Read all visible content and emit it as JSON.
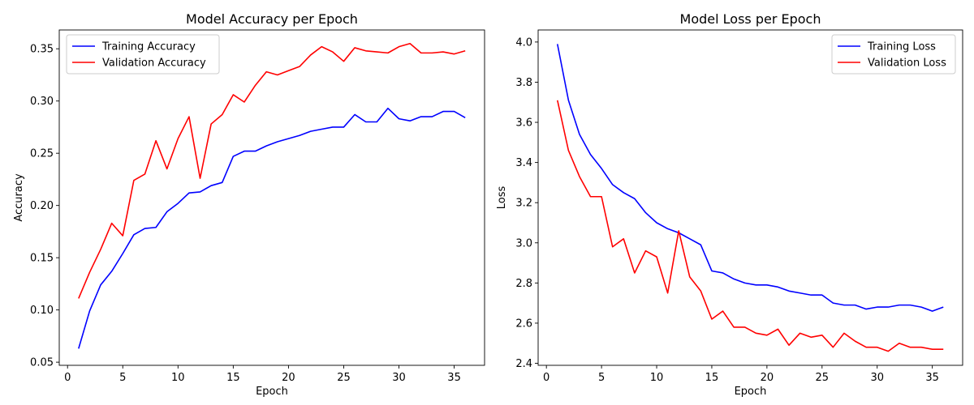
{
  "chart_data": [
    {
      "type": "line",
      "title": "Model Accuracy per Epoch",
      "xlabel": "Epoch",
      "ylabel": "Accuracy",
      "xlim": [
        -0.75,
        37.75
      ],
      "ylim": [
        0.047,
        0.368
      ],
      "xticks": [
        0,
        5,
        10,
        15,
        20,
        25,
        30,
        35
      ],
      "yticks": [
        0.05,
        0.1,
        0.15,
        0.2,
        0.25,
        0.3,
        0.35
      ],
      "ytick_decimals": 2,
      "legend_position": "upper-left",
      "grid": false,
      "x": [
        1,
        2,
        3,
        4,
        5,
        6,
        7,
        8,
        9,
        10,
        11,
        12,
        13,
        14,
        15,
        16,
        17,
        18,
        19,
        20,
        21,
        22,
        23,
        24,
        25,
        26,
        27,
        28,
        29,
        30,
        31,
        32,
        33,
        34,
        35,
        36
      ],
      "series": [
        {
          "name": "Training Accuracy",
          "color": "#0000ff",
          "values": [
            0.063,
            0.099,
            0.124,
            0.137,
            0.154,
            0.172,
            0.178,
            0.179,
            0.194,
            0.202,
            0.212,
            0.213,
            0.219,
            0.222,
            0.247,
            0.252,
            0.252,
            0.257,
            0.261,
            0.264,
            0.267,
            0.271,
            0.273,
            0.275,
            0.275,
            0.287,
            0.28,
            0.28,
            0.293,
            0.283,
            0.281,
            0.285,
            0.285,
            0.29,
            0.29,
            0.284
          ]
        },
        {
          "name": "Validation Accuracy",
          "color": "#ff0000",
          "values": [
            0.111,
            0.136,
            0.158,
            0.183,
            0.171,
            0.224,
            0.23,
            0.262,
            0.235,
            0.264,
            0.285,
            0.226,
            0.278,
            0.287,
            0.306,
            0.299,
            0.315,
            0.328,
            0.325,
            0.329,
            0.333,
            0.344,
            0.352,
            0.347,
            0.338,
            0.351,
            0.348,
            0.347,
            0.346,
            0.352,
            0.355,
            0.346,
            0.346,
            0.347,
            0.345,
            0.348
          ]
        }
      ]
    },
    {
      "type": "line",
      "title": "Model Loss per Epoch",
      "xlabel": "Epoch",
      "ylabel": "Loss",
      "xlim": [
        -0.75,
        37.75
      ],
      "ylim": [
        2.39,
        4.06
      ],
      "xticks": [
        0,
        5,
        10,
        15,
        20,
        25,
        30,
        35
      ],
      "yticks": [
        2.4,
        2.6,
        2.8,
        3.0,
        3.2,
        3.4,
        3.6,
        3.8,
        4.0
      ],
      "ytick_decimals": 1,
      "legend_position": "upper-right",
      "grid": false,
      "x": [
        1,
        2,
        3,
        4,
        5,
        6,
        7,
        8,
        9,
        10,
        11,
        12,
        13,
        14,
        15,
        16,
        17,
        18,
        19,
        20,
        21,
        22,
        23,
        24,
        25,
        26,
        27,
        28,
        29,
        30,
        31,
        32,
        33,
        34,
        35,
        36
      ],
      "series": [
        {
          "name": "Training Loss",
          "color": "#0000ff",
          "values": [
            3.99,
            3.71,
            3.54,
            3.44,
            3.37,
            3.29,
            3.25,
            3.22,
            3.15,
            3.1,
            3.07,
            3.05,
            3.02,
            2.99,
            2.86,
            2.85,
            2.82,
            2.8,
            2.79,
            2.79,
            2.78,
            2.76,
            2.75,
            2.74,
            2.74,
            2.7,
            2.69,
            2.69,
            2.67,
            2.68,
            2.68,
            2.69,
            2.69,
            2.68,
            2.66,
            2.68
          ]
        },
        {
          "name": "Validation Loss",
          "color": "#ff0000",
          "values": [
            3.71,
            3.46,
            3.33,
            3.23,
            3.23,
            2.98,
            3.02,
            2.85,
            2.96,
            2.93,
            2.75,
            3.06,
            2.83,
            2.76,
            2.62,
            2.66,
            2.58,
            2.58,
            2.55,
            2.54,
            2.57,
            2.49,
            2.55,
            2.53,
            2.54,
            2.48,
            2.55,
            2.51,
            2.48,
            2.48,
            2.46,
            2.5,
            2.48,
            2.48,
            2.47,
            2.47
          ]
        }
      ]
    }
  ]
}
